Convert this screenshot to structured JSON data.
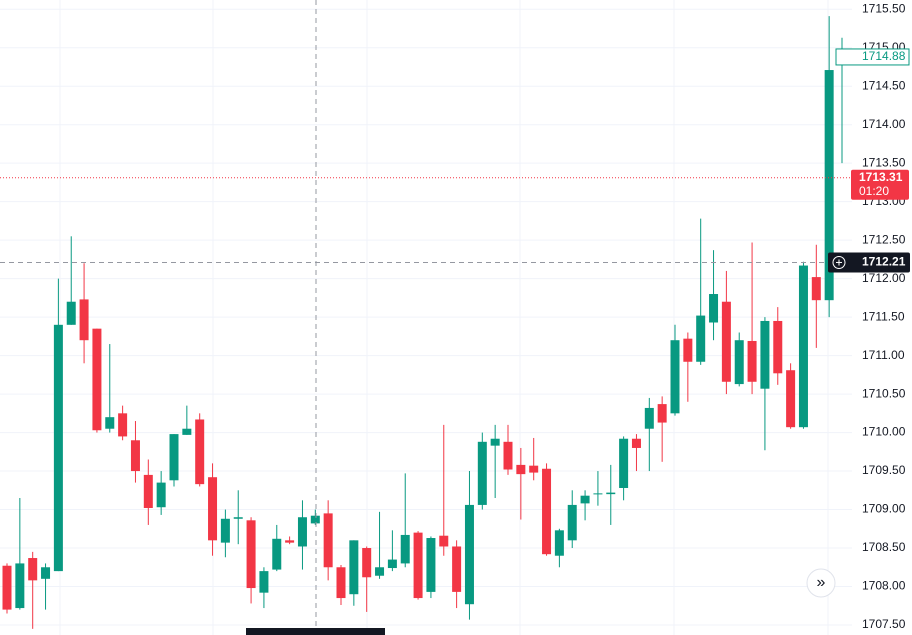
{
  "chart_data": {
    "type": "candlestick",
    "up_color": "#089981",
    "down_color": "#f23645",
    "open": [
      1708.27,
      1707.72,
      1708.37,
      1708.1,
      1708.2,
      1711.4,
      1711.73,
      1711.35,
      1710.05,
      1710.25,
      1709.9,
      1709.45,
      1709.03,
      1709.38,
      1709.97,
      1710.17,
      1709.42,
      1708.57,
      1708.88,
      1708.86,
      1707.92,
      1708.22,
      1708.6,
      1708.52,
      1708.82,
      1708.95,
      1708.25,
      1707.9,
      1708.5,
      1708.14,
      1708.24,
      1708.3,
      1708.7,
      1707.93,
      1708.66,
      1708.52,
      1707.77,
      1709.06,
      1709.83,
      1709.88,
      1709.58,
      1709.57,
      1709.53,
      1708.4,
      1708.6,
      1709.08,
      1709.2,
      1709.2,
      1709.28,
      1709.92,
      1710.05,
      1710.37,
      1710.25,
      1711.22,
      1710.92,
      1711.43,
      1711.7,
      1710.63,
      1711.19,
      1710.57,
      1711.45,
      1710.81,
      1710.07,
      1712.02,
      1711.72,
      1714.83
    ],
    "high": [
      1708.3,
      1709.15,
      1708.45,
      1708.3,
      1712.0,
      1712.55,
      1712.2,
      1711.35,
      1711.15,
      1710.35,
      1710.15,
      1709.65,
      1709.5,
      1709.98,
      1710.35,
      1710.25,
      1709.6,
      1709.0,
      1709.25,
      1708.9,
      1708.25,
      1708.8,
      1708.65,
      1709.12,
      1709.0,
      1709.12,
      1708.28,
      1708.6,
      1708.52,
      1708.97,
      1708.73,
      1709.47,
      1708.72,
      1708.65,
      1710.1,
      1708.6,
      1709.5,
      1710.0,
      1710.1,
      1710.1,
      1709.8,
      1709.93,
      1709.6,
      1708.75,
      1709.25,
      1709.25,
      1709.5,
      1709.58,
      1709.95,
      1709.98,
      1710.45,
      1710.47,
      1711.4,
      1711.3,
      1712.78,
      1712.37,
      1712.1,
      1711.3,
      1712.47,
      1711.5,
      1711.63,
      1710.9,
      1712.22,
      1712.44,
      1715.41,
      1715.13
    ],
    "low": [
      1707.65,
      1707.7,
      1707.45,
      1707.7,
      1708.2,
      1711.4,
      1710.9,
      1710.0,
      1710.0,
      1709.9,
      1709.35,
      1708.8,
      1708.93,
      1709.3,
      1709.97,
      1709.3,
      1708.4,
      1708.38,
      1708.55,
      1707.78,
      1707.72,
      1708.2,
      1708.55,
      1708.22,
      1708.8,
      1708.08,
      1707.76,
      1707.75,
      1707.67,
      1708.1,
      1708.2,
      1708.25,
      1707.83,
      1707.85,
      1708.4,
      1707.72,
      1707.57,
      1709.0,
      1709.15,
      1709.45,
      1708.87,
      1709.38,
      1708.4,
      1708.25,
      1708.5,
      1708.86,
      1709.05,
      1708.8,
      1709.12,
      1709.5,
      1709.5,
      1709.62,
      1710.22,
      1710.4,
      1710.88,
      1711.2,
      1710.5,
      1710.6,
      1710.5,
      1709.77,
      1710.62,
      1710.05,
      1710.05,
      1711.1,
      1711.5,
      1713.5
    ],
    "close": [
      1707.7,
      1708.3,
      1708.08,
      1708.25,
      1711.4,
      1711.7,
      1711.2,
      1710.03,
      1710.2,
      1709.95,
      1709.5,
      1709.02,
      1709.35,
      1709.98,
      1710.05,
      1709.33,
      1708.6,
      1708.88,
      1708.9,
      1707.98,
      1708.2,
      1708.62,
      1708.57,
      1708.9,
      1708.92,
      1708.25,
      1707.85,
      1708.6,
      1708.12,
      1708.25,
      1708.35,
      1708.67,
      1707.85,
      1708.63,
      1708.52,
      1707.93,
      1709.06,
      1709.88,
      1709.92,
      1709.52,
      1709.46,
      1709.48,
      1708.42,
      1708.73,
      1709.06,
      1709.18,
      1709.21,
      1709.22,
      1709.92,
      1709.8,
      1710.32,
      1710.13,
      1711.2,
      1710.92,
      1711.52,
      1711.8,
      1710.66,
      1711.2,
      1710.66,
      1711.45,
      1710.77,
      1710.07,
      1712.17,
      1711.72,
      1714.71,
      1714.88
    ],
    "ylim": [
      1707.37,
      1715.62
    ],
    "yticks": [
      {
        "value": 1707.5,
        "label": "1707.50"
      },
      {
        "value": 1708,
        "label": "1708.00"
      },
      {
        "value": 1708.5,
        "label": "1708.50"
      },
      {
        "value": 1709,
        "label": "1709.00"
      },
      {
        "value": 1709.5,
        "label": "1709.50"
      },
      {
        "value": 1710,
        "label": "1710.00"
      },
      {
        "value": 1710.5,
        "label": "1710.50"
      },
      {
        "value": 1711,
        "label": "1711.00"
      },
      {
        "value": 1711.5,
        "label": "1711.50"
      },
      {
        "value": 1712,
        "label": "1712.00"
      },
      {
        "value": 1712.5,
        "label": "1712.50"
      },
      {
        "value": 1713,
        "label": "1713.00"
      },
      {
        "value": 1713.5,
        "label": "1713.50"
      },
      {
        "value": 1714,
        "label": "1714.00"
      },
      {
        "value": 1714.5,
        "label": "1714.50"
      },
      {
        "value": 1715,
        "label": "1715.00"
      },
      {
        "value": 1715.5,
        "label": "1715.50"
      }
    ],
    "grid": true,
    "last_price": 1714.88,
    "live_price": 1713.31,
    "countdown": "01:20",
    "crosshair_price": 1712.21
  }
}
